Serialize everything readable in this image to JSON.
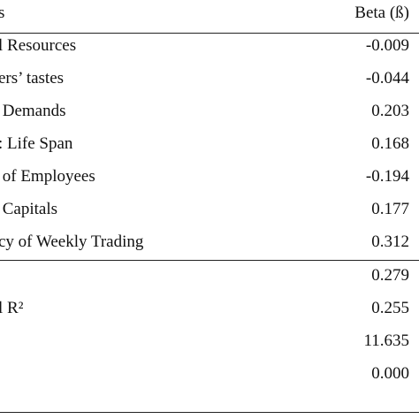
{
  "header": {
    "left": "s",
    "right": "Beta (ß)"
  },
  "rows": [
    {
      "label": "l Resources",
      "value": "-0.009"
    },
    {
      "label": "ers’ tastes",
      "value": "-0.044"
    },
    {
      "label": " Demands",
      "value": "0.203"
    },
    {
      "label": ": Life Span",
      "value": "0.168"
    },
    {
      "label": " of Employees",
      "value": "-0.194"
    },
    {
      "label": " Capitals",
      "value": "0.177"
    },
    {
      "label": "cy of Weekly Trading",
      "value": "0.312"
    },
    {
      "value": "0.279"
    },
    {
      "label": "l R²",
      "value": "0.255"
    },
    {
      "value": "11.635"
    },
    {
      "value": "0.000"
    }
  ]
}
